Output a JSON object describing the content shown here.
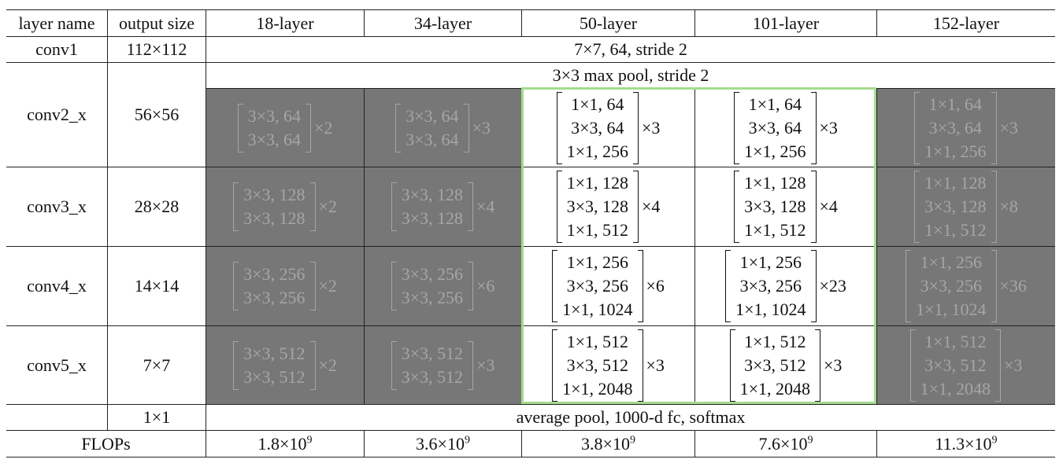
{
  "header": [
    "layer name",
    "output size",
    "18-layer",
    "34-layer",
    "50-layer",
    "101-layer",
    "152-layer"
  ],
  "rows": [
    {
      "name": "conv1",
      "output_size": "112×112",
      "all": "7×7, 64, stride 2"
    },
    {
      "name": "conv2_x",
      "output_size": "56×56",
      "all": "3×3 max pool, stride 2",
      "blocks": [
        {
          "lines": [
            "3×3, 64",
            "3×3, 64"
          ],
          "repeat": "×2"
        },
        {
          "lines": [
            "3×3, 64",
            "3×3, 64"
          ],
          "repeat": "×3"
        },
        {
          "lines": [
            "1×1, 64",
            "3×3, 64",
            "1×1, 256"
          ],
          "repeat": "×3"
        },
        {
          "lines": [
            "1×1, 64",
            "3×3, 64",
            "1×1, 256"
          ],
          "repeat": "×3"
        },
        {
          "lines": [
            "1×1, 64",
            "3×3, 64",
            "1×1, 256"
          ],
          "repeat": "×3"
        }
      ]
    },
    {
      "name": "conv3_x",
      "output_size": "28×28",
      "blocks": [
        {
          "lines": [
            "3×3, 128",
            "3×3, 128"
          ],
          "repeat": "×2"
        },
        {
          "lines": [
            "3×3, 128",
            "3×3, 128"
          ],
          "repeat": "×4"
        },
        {
          "lines": [
            "1×1, 128",
            "3×3, 128",
            "1×1, 512"
          ],
          "repeat": "×4"
        },
        {
          "lines": [
            "1×1, 128",
            "3×3, 128",
            "1×1, 512"
          ],
          "repeat": "×4"
        },
        {
          "lines": [
            "1×1, 128",
            "3×3, 128",
            "1×1, 512"
          ],
          "repeat": "×8"
        }
      ]
    },
    {
      "name": "conv4_x",
      "output_size": "14×14",
      "blocks": [
        {
          "lines": [
            "3×3, 256",
            "3×3, 256"
          ],
          "repeat": "×2"
        },
        {
          "lines": [
            "3×3, 256",
            "3×3, 256"
          ],
          "repeat": "×6"
        },
        {
          "lines": [
            "1×1, 256",
            "3×3, 256",
            "1×1, 1024"
          ],
          "repeat": "×6"
        },
        {
          "lines": [
            "1×1, 256",
            "3×3, 256",
            "1×1, 1024"
          ],
          "repeat": "×23"
        },
        {
          "lines": [
            "1×1, 256",
            "3×3, 256",
            "1×1, 1024"
          ],
          "repeat": "×36"
        }
      ]
    },
    {
      "name": "conv5_x",
      "output_size": "7×7",
      "blocks": [
        {
          "lines": [
            "3×3, 512",
            "3×3, 512"
          ],
          "repeat": "×2"
        },
        {
          "lines": [
            "3×3, 512",
            "3×3, 512"
          ],
          "repeat": "×3"
        },
        {
          "lines": [
            "1×1, 512",
            "3×3, 512",
            "1×1, 2048"
          ],
          "repeat": "×3"
        },
        {
          "lines": [
            "1×1, 512",
            "3×3, 512",
            "1×1, 2048"
          ],
          "repeat": "×3"
        },
        {
          "lines": [
            "1×1, 512",
            "3×3, 512",
            "1×1, 2048"
          ],
          "repeat": "×3"
        }
      ]
    },
    {
      "output_size": "1×1",
      "all": "average pool, 1000-d fc, softmax"
    },
    {
      "name": "FLOPs",
      "flops": [
        {
          "base": "1.8×10",
          "exp": "9"
        },
        {
          "base": "3.6×10",
          "exp": "9"
        },
        {
          "base": "3.8×10",
          "exp": "9"
        },
        {
          "base": "7.6×10",
          "exp": "9"
        },
        {
          "base": "11.3×10",
          "exp": "9"
        }
      ]
    }
  ]
}
